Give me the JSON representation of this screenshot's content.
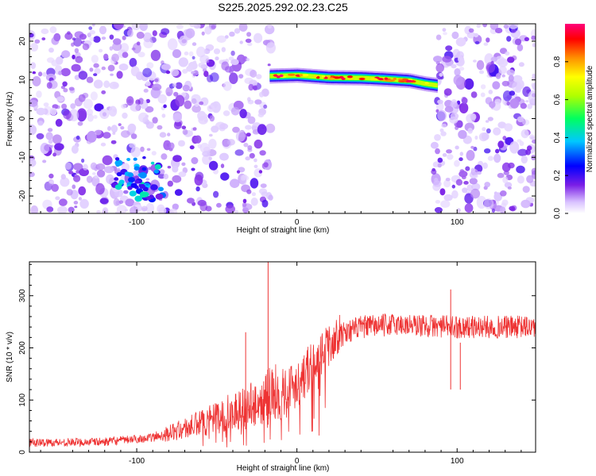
{
  "title": "S225.2025.292.02.23.C25",
  "chart_data": [
    {
      "type": "heatmap",
      "title": "S225.2025.292.02.23.C25",
      "xlabel": "Height of straight line (km)",
      "ylabel": "Frequency (Hz)",
      "xlim": [
        -167,
        149
      ],
      "ylim": [
        -24.5,
        24.5
      ],
      "x_ticks": [
        -100,
        0,
        100
      ],
      "y_ticks": [
        -20,
        -10,
        0,
        10,
        20
      ],
      "noise_regions_km": [
        [
          -167,
          -16
        ],
        [
          85,
          149
        ]
      ],
      "gap_region_km": [
        -16,
        85
      ],
      "signal_band": {
        "x_start_km": -17,
        "x_end_km": 87,
        "freq_hz": [
          11,
          11.2,
          10.6,
          10.5,
          10.2,
          9.8,
          9.0,
          8.6
        ],
        "freq_at_km": [
          -17,
          0,
          20,
          40,
          55,
          70,
          80,
          87
        ],
        "peak_amplitude": 1.0
      },
      "secondary_feature": {
        "x_km": [
          -115,
          -83
        ],
        "freq_hz": [
          -21,
          -7
        ],
        "peak_amplitude": 0.45
      },
      "colorbar": {
        "label": "Normalized spectral amplitude",
        "range": [
          0,
          1
        ],
        "ticks": [
          "0.0",
          "0.2",
          "0.4",
          "0.6",
          "0.8"
        ]
      }
    },
    {
      "type": "line",
      "title": "",
      "xlabel": "Height of straight line (km)",
      "ylabel": "SNR (10 * v/v)",
      "xlim": [
        -167,
        149
      ],
      "ylim": [
        0,
        365
      ],
      "x_ticks": [
        -100,
        0,
        100
      ],
      "y_ticks": [
        0,
        100,
        200,
        300
      ],
      "series": [
        {
          "name": "SNR",
          "color": "#ee3333",
          "envelope_x": [
            -167,
            -120,
            -90,
            -70,
            -50,
            -35,
            -25,
            -15,
            -5,
            5,
            15,
            25,
            40,
            60,
            100,
            149
          ],
          "envelope_y": [
            18,
            20,
            28,
            45,
            65,
            85,
            95,
            110,
            120,
            150,
            185,
            225,
            240,
            245,
            240,
            240
          ],
          "spikes": [
            {
              "x": -18,
              "y": 365
            },
            {
              "x": -32,
              "y": 230
            },
            {
              "x": 96,
              "y": 312
            },
            {
              "x": 102,
              "y": 210
            }
          ]
        }
      ]
    }
  ]
}
